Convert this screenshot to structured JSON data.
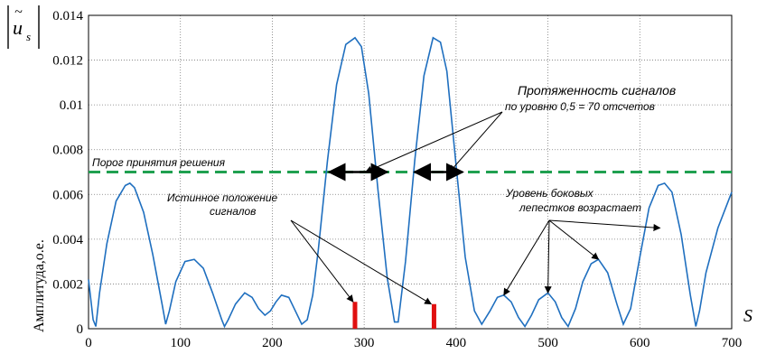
{
  "chart_data": {
    "type": "line",
    "ylabel": "Амплитуда,о.е.",
    "xlabel": "S",
    "y_symbol": {
      "main": "u",
      "sub": "s"
    },
    "xlim": [
      0,
      700
    ],
    "ylim": [
      0,
      0.014
    ],
    "x_ticks": [
      "0",
      "100",
      "200",
      "300",
      "400",
      "500",
      "600",
      "700"
    ],
    "y_ticks": [
      "0",
      "0.002",
      "0.004",
      "0.006",
      "0.008",
      "0.01",
      "0.012",
      "0.014"
    ],
    "grid": true,
    "colors": {
      "curve": "#1f6fbf",
      "threshold": "#20a050",
      "marker": "#e01010"
    },
    "series": [
      {
        "x": [
          0,
          5,
          8,
          12,
          20,
          30,
          40,
          45,
          50,
          60,
          70,
          80,
          84,
          88,
          95,
          105,
          115,
          125,
          135,
          145,
          148,
          152,
          160,
          170,
          178,
          185,
          192,
          198,
          204,
          210,
          218,
          225,
          232,
          238,
          244,
          250,
          260,
          270,
          280,
          290,
          297,
          305,
          315,
          325,
          333,
          337,
          345,
          355,
          365,
          375,
          383,
          390,
          400,
          410,
          420,
          428,
          437,
          445,
          452,
          460,
          468,
          475,
          482,
          490,
          500,
          508,
          515,
          522,
          530,
          538,
          547,
          555,
          565,
          575,
          582,
          590,
          600,
          610,
          620,
          627,
          635,
          645,
          655,
          661,
          665,
          672,
          685,
          700
        ],
        "values": [
          0.0022,
          0.0004,
          0.0001,
          0.0016,
          0.0038,
          0.0057,
          0.0064,
          0.0065,
          0.0063,
          0.0052,
          0.0033,
          0.0011,
          0.0002,
          0.0008,
          0.0021,
          0.003,
          0.0031,
          0.0027,
          0.0016,
          0.0004,
          0.0001,
          0.0004,
          0.0011,
          0.0016,
          0.0014,
          0.0009,
          0.0006,
          0.0008,
          0.0012,
          0.0015,
          0.0014,
          0.0008,
          0.0002,
          0.0004,
          0.0015,
          0.0035,
          0.0075,
          0.0109,
          0.0127,
          0.013,
          0.0126,
          0.0105,
          0.0062,
          0.0023,
          0.0003,
          0.0003,
          0.003,
          0.0075,
          0.0113,
          0.013,
          0.0128,
          0.0115,
          0.0073,
          0.0032,
          0.0008,
          0.0002,
          0.0008,
          0.0014,
          0.0015,
          0.0012,
          0.0005,
          0.0001,
          0.0006,
          0.0013,
          0.0016,
          0.0012,
          0.0005,
          0.0001,
          0.0009,
          0.0021,
          0.0029,
          0.0031,
          0.0025,
          0.0011,
          0.0002,
          0.0009,
          0.0032,
          0.0054,
          0.0064,
          0.0065,
          0.0061,
          0.0042,
          0.0015,
          0.0001,
          0.0008,
          0.0025,
          0.0045,
          0.0061
        ]
      }
    ],
    "threshold": {
      "value": 0.007,
      "label": "Порог принятия решения"
    },
    "markers": [
      {
        "x": 290,
        "height": 0.0012
      },
      {
        "x": 376,
        "height": 0.0011
      }
    ],
    "widths": [
      {
        "x1": 262,
        "x2": 325
      },
      {
        "x1": 355,
        "x2": 407
      }
    ],
    "annotations": {
      "extent_line1": "Протяженность сигналов",
      "extent_line2": "по уровню 0,5 = 70 отсчетов",
      "true_pos_line1": "Истинное положение",
      "true_pos_line2": "сигналов",
      "sidelobes_line1": "Уровень боковых",
      "sidelobes_line2": "лепестков возрастает"
    }
  }
}
